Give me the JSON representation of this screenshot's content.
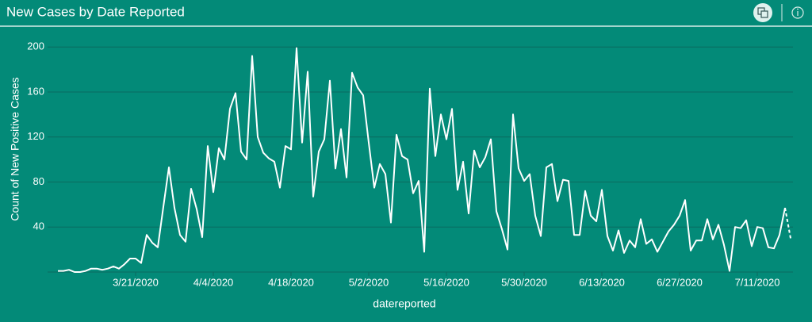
{
  "header": {
    "title": "New Cases by Date Reported"
  },
  "chart_data": {
    "type": "line",
    "y_label": "Count of New Positive Cases",
    "x_label": "datereported",
    "x": [
      "3/7/2020",
      "3/8/2020",
      "3/9/2020",
      "3/10/2020",
      "3/11/2020",
      "3/12/2020",
      "3/13/2020",
      "3/14/2020",
      "3/15/2020",
      "3/16/2020",
      "3/17/2020",
      "3/18/2020",
      "3/19/2020",
      "3/20/2020",
      "3/21/2020",
      "3/22/2020",
      "3/23/2020",
      "3/24/2020",
      "3/25/2020",
      "3/26/2020",
      "3/27/2020",
      "3/28/2020",
      "3/29/2020",
      "3/30/2020",
      "3/31/2020",
      "4/1/2020",
      "4/2/2020",
      "4/3/2020",
      "4/4/2020",
      "4/5/2020",
      "4/6/2020",
      "4/7/2020",
      "4/8/2020",
      "4/9/2020",
      "4/10/2020",
      "4/11/2020",
      "4/12/2020",
      "4/13/2020",
      "4/14/2020",
      "4/15/2020",
      "4/16/2020",
      "4/17/2020",
      "4/18/2020",
      "4/19/2020",
      "4/20/2020",
      "4/21/2020",
      "4/22/2020",
      "4/23/2020",
      "4/24/2020",
      "4/25/2020",
      "4/26/2020",
      "4/27/2020",
      "4/28/2020",
      "4/29/2020",
      "4/30/2020",
      "5/1/2020",
      "5/2/2020",
      "5/3/2020",
      "5/4/2020",
      "5/5/2020",
      "5/6/2020",
      "5/7/2020",
      "5/8/2020",
      "5/9/2020",
      "5/10/2020",
      "5/11/2020",
      "5/12/2020",
      "5/13/2020",
      "5/14/2020",
      "5/15/2020",
      "5/16/2020",
      "5/17/2020",
      "5/18/2020",
      "5/19/2020",
      "5/20/2020",
      "5/21/2020",
      "5/22/2020",
      "5/23/2020",
      "5/24/2020",
      "5/25/2020",
      "5/26/2020",
      "5/27/2020",
      "5/28/2020",
      "5/29/2020",
      "5/30/2020",
      "5/31/2020",
      "6/1/2020",
      "6/2/2020",
      "6/3/2020",
      "6/4/2020",
      "6/5/2020",
      "6/6/2020",
      "6/7/2020",
      "6/8/2020",
      "6/9/2020",
      "6/10/2020",
      "6/11/2020",
      "6/12/2020",
      "6/13/2020",
      "6/14/2020",
      "6/15/2020",
      "6/16/2020",
      "6/17/2020",
      "6/18/2020",
      "6/19/2020",
      "6/20/2020",
      "6/21/2020",
      "6/22/2020",
      "6/23/2020",
      "6/24/2020",
      "6/25/2020",
      "6/26/2020",
      "6/27/2020",
      "6/28/2020",
      "6/29/2020",
      "6/30/2020",
      "7/1/2020",
      "7/2/2020",
      "7/3/2020",
      "7/4/2020",
      "7/5/2020",
      "7/6/2020",
      "7/7/2020",
      "7/8/2020",
      "7/9/2020",
      "7/10/2020",
      "7/11/2020",
      "7/12/2020",
      "7/13/2020",
      "7/14/2020",
      "7/15/2020",
      "7/16/2020",
      "7/17/2020"
    ],
    "series": [
      {
        "color": "#ffffff",
        "values": [
          1,
          1,
          2,
          0,
          0,
          1,
          3,
          3,
          2,
          3,
          5,
          3,
          7,
          12,
          12,
          8,
          33,
          26,
          22,
          58,
          93,
          57,
          33,
          27,
          74,
          56,
          31,
          112,
          71,
          110,
          100,
          145,
          159,
          107,
          100,
          192,
          120,
          106,
          101,
          98,
          75,
          112,
          109,
          199,
          115,
          178,
          67,
          107,
          118,
          170,
          92,
          127,
          84,
          177,
          164,
          157,
          115,
          75,
          96,
          87,
          44,
          122,
          103,
          100,
          70,
          81,
          18,
          163,
          103,
          140,
          118,
          145,
          73,
          98,
          52,
          108,
          93,
          102,
          118,
          54,
          38,
          20,
          140,
          92,
          81,
          87,
          50,
          32,
          93,
          96,
          63,
          82,
          81,
          33,
          33,
          72,
          50,
          45,
          73,
          32,
          19,
          37,
          17,
          28,
          22,
          47,
          25,
          29,
          18,
          27,
          36,
          42,
          50,
          64,
          19,
          28,
          28,
          47,
          29,
          42,
          24,
          1,
          40,
          39,
          46,
          23,
          40,
          39,
          22,
          21,
          33,
          57,
          30
        ]
      }
    ],
    "last_segment_dashed": true,
    "xlim": [
      "3/7/2020",
      "7/17/2020"
    ],
    "xticks": [
      "3/21/2020",
      "4/4/2020",
      "4/18/2020",
      "5/2/2020",
      "5/16/2020",
      "5/30/2020",
      "6/13/2020",
      "6/27/2020",
      "7/11/2020"
    ],
    "ylim": [
      0,
      210
    ],
    "yticks": [
      40,
      80,
      120,
      160,
      200
    ],
    "grid": true
  }
}
